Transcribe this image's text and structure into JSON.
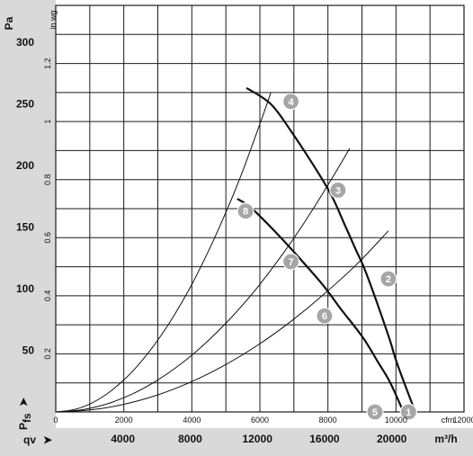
{
  "chart_data": {
    "type": "line",
    "pa_axis": {
      "label": "Pa",
      "ticks": [
        50,
        100,
        150,
        200,
        250,
        300
      ],
      "range": [
        0,
        330
      ]
    },
    "inwg_axis": {
      "label": "in wg",
      "ticks": [
        "0.2",
        "0.4",
        "0.6",
        "0.8",
        "1",
        "1.2"
      ]
    },
    "cfm_axis": {
      "label": "cfm",
      "ticks": [
        "0",
        "2000",
        "4000",
        "6000",
        "8000",
        "10000",
        "12000"
      ]
    },
    "m3h_axis": {
      "label": "m³/h",
      "ticks": [
        "4000",
        "8000",
        "12000",
        "16000",
        "20000"
      ],
      "range": [
        0,
        24300
      ]
    },
    "y_title": {
      "main": "P",
      "sub": "fs",
      "arrow": "➤"
    },
    "x_title": {
      "main": "qv",
      "arrow": "➤"
    },
    "series": [
      {
        "style": "fan-curve-1",
        "x": [
          11350,
          12800,
          14000,
          15350,
          16400,
          17200,
          17850,
          18500,
          19800,
          20300,
          21400
        ],
        "y": [
          263,
          250,
          228,
          200,
          176,
          152,
          132,
          112,
          62,
          40,
          0
        ]
      },
      {
        "style": "fan-curve-2",
        "x": [
          10800,
          11600,
          12800,
          14300,
          15900,
          17000,
          18300,
          19200,
          19900,
          20700
        ],
        "y": [
          173,
          166,
          150,
          128,
          103,
          83,
          60,
          40,
          24,
          0
        ]
      },
      {
        "style": "system-line",
        "x": [
          0,
          1000,
          2000,
          3000,
          4000,
          5000,
          6000,
          7000,
          8000,
          9000,
          10000,
          11000,
          12000,
          12800
        ],
        "y": [
          0,
          1.6,
          6.3,
          14.2,
          25.3,
          39.5,
          56.9,
          77.4,
          101,
          128,
          158,
          191,
          228,
          259
        ]
      },
      {
        "style": "system-line",
        "x": [
          0,
          1500,
          3000,
          4500,
          6000,
          7500,
          9000,
          10500,
          12000,
          13500,
          15000,
          16500,
          17500
        ],
        "y": [
          0,
          1.6,
          6.3,
          14.2,
          25.3,
          39.5,
          56.9,
          77.4,
          101,
          128,
          158,
          191,
          214
        ]
      },
      {
        "style": "system-line",
        "x": [
          0,
          2000,
          4000,
          6000,
          8000,
          10000,
          12000,
          14000,
          16000,
          18000,
          19800
        ],
        "y": [
          0,
          1.5,
          6.0,
          13.5,
          24.0,
          37.5,
          54.0,
          73.5,
          96.0,
          121,
          147
        ]
      }
    ],
    "points": [
      {
        "label": "1",
        "x": 21000,
        "y": 0
      },
      {
        "label": "2",
        "x": 19800,
        "y": 108
      },
      {
        "label": "3",
        "x": 16800,
        "y": 180
      },
      {
        "label": "4",
        "x": 14000,
        "y": 252
      },
      {
        "label": "5",
        "x": 19000,
        "y": 0
      },
      {
        "label": "6",
        "x": 16000,
        "y": 78
      },
      {
        "label": "7",
        "x": 14000,
        "y": 122
      },
      {
        "label": "8",
        "x": 11300,
        "y": 163
      }
    ],
    "grid": true
  }
}
